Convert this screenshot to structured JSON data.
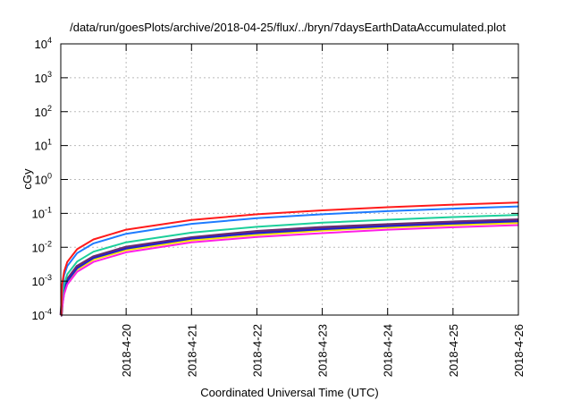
{
  "chart_data": {
    "type": "line",
    "title": "/data/run/goesPlots/archive/2018-04-25/flux/../bryn/7daysEarthDataAccumulated.plot",
    "xlabel": "Coordinated Universal Time (UTC)",
    "ylabel": "cGy",
    "yscale": "log",
    "ylim": [
      0.0001,
      10000
    ],
    "xlim_days": [
      0,
      7
    ],
    "grid": true,
    "y_ticks": [
      {
        "value": 0.0001,
        "base": "10",
        "exp": "-4"
      },
      {
        "value": 0.001,
        "base": "10",
        "exp": "-3"
      },
      {
        "value": 0.01,
        "base": "10",
        "exp": "-2"
      },
      {
        "value": 0.1,
        "base": "10",
        "exp": "-1"
      },
      {
        "value": 1,
        "base": "10",
        "exp": "0"
      },
      {
        "value": 10,
        "base": "10",
        "exp": "1"
      },
      {
        "value": 100,
        "base": "10",
        "exp": "2"
      },
      {
        "value": 1000,
        "base": "10",
        "exp": "3"
      },
      {
        "value": 10000,
        "base": "10",
        "exp": "4"
      }
    ],
    "x_ticks": [
      {
        "day": 1,
        "label": "2018-4-20"
      },
      {
        "day": 2,
        "label": "2018-4-21"
      },
      {
        "day": 3,
        "label": "2018-4-22"
      },
      {
        "day": 4,
        "label": "2018-4-23"
      },
      {
        "day": 5,
        "label": "2018-4-24"
      },
      {
        "day": 6,
        "label": "2018-4-25"
      },
      {
        "day": 7,
        "label": "2018-4-26"
      }
    ],
    "x": [
      0.005,
      0.02,
      0.05,
      0.1,
      0.25,
      0.5,
      1,
      2,
      3,
      4,
      5,
      6,
      7
    ],
    "series": [
      {
        "name": "purple",
        "color": "#6a2c70",
        "width": 3.5,
        "values": [
          0.0001,
          0.00024,
          0.00058,
          0.0011,
          0.0027,
          0.0052,
          0.01,
          0.019,
          0.029,
          0.038,
          0.046,
          0.055,
          0.064
        ]
      },
      {
        "name": "yellow",
        "color": "#f5e600",
        "width": 2,
        "values": [
          0.0001,
          0.0002,
          0.00047,
          0.00092,
          0.0022,
          0.0043,
          0.0082,
          0.016,
          0.023,
          0.031,
          0.038,
          0.045,
          0.052
        ]
      },
      {
        "name": "navy",
        "color": "#1f1fd0",
        "width": 2,
        "values": [
          0.0001,
          0.00022,
          0.00053,
          0.001,
          0.0024,
          0.0048,
          0.0091,
          0.018,
          0.026,
          0.034,
          0.042,
          0.05,
          0.058
        ]
      },
      {
        "name": "magenta",
        "color": "#ff1ee6",
        "width": 2,
        "values": [
          0.0001,
          0.00017,
          0.00041,
          0.0008,
          0.0019,
          0.0037,
          0.0071,
          0.014,
          0.02,
          0.026,
          0.033,
          0.039,
          0.045
        ]
      },
      {
        "name": "teal",
        "color": "#1ccf9a",
        "width": 2,
        "values": [
          0.0001,
          0.00034,
          0.0008,
          0.0016,
          0.0038,
          0.0074,
          0.014,
          0.027,
          0.04,
          0.053,
          0.065,
          0.078,
          0.09
        ]
      },
      {
        "name": "blue",
        "color": "#1e7bff",
        "width": 2,
        "values": [
          0.0001,
          0.0006,
          0.0015,
          0.0028,
          0.0067,
          0.013,
          0.025,
          0.049,
          0.072,
          0.094,
          0.116,
          0.138,
          0.16
        ]
      },
      {
        "name": "red",
        "color": "#ff1a1a",
        "width": 2,
        "values": [
          0.0001,
          0.0008,
          0.0019,
          0.0037,
          0.0088,
          0.017,
          0.033,
          0.064,
          0.094,
          0.123,
          0.152,
          0.181,
          0.21
        ]
      }
    ]
  }
}
